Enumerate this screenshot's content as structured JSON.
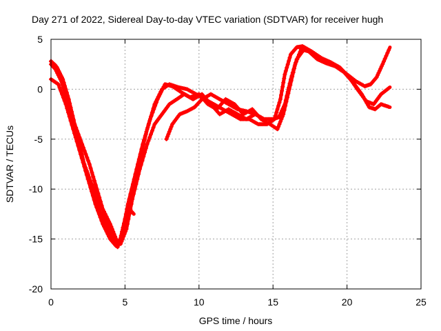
{
  "chart_data": {
    "type": "line",
    "title": "Day 271 of 2022, Sidereal Day-to-day VTEC variation (SDTVAR) for receiver hugh",
    "xlabel": "GPS time / hours",
    "ylabel": "SDTVAR / TECUs",
    "xlim": [
      0,
      25
    ],
    "ylim": [
      -20,
      5
    ],
    "xticks": [
      0,
      5,
      10,
      15,
      20,
      25
    ],
    "yticks": [
      -20,
      -15,
      -10,
      -5,
      0,
      5
    ],
    "grid": true,
    "marker": "+",
    "color": "#ff0000",
    "series": [
      {
        "name": "track-1",
        "x": [
          0,
          0.3,
          0.6,
          1.0,
          1.5,
          2.0,
          2.5,
          3.0,
          3.5,
          4.0,
          4.4,
          4.7,
          5.0,
          5.3,
          5.6
        ],
        "y": [
          2.8,
          2.4,
          1.5,
          -0.5,
          -3,
          -6,
          -9,
          -11.5,
          -13.5,
          -15,
          -15.7,
          -15.3,
          -13.5,
          -12,
          -12.5
        ]
      },
      {
        "name": "track-2",
        "x": [
          0,
          0.3,
          0.7,
          1.2,
          1.6,
          2.0,
          2.5,
          3.0,
          3.5,
          3.9,
          4.3,
          4.6,
          5.0,
          5.5,
          6.0,
          6.5,
          7.0,
          7.5,
          8.0,
          8.6,
          9.2,
          9.8,
          10.4,
          11.0,
          11.6,
          12.2,
          12.8,
          13.4,
          14.0,
          14.6,
          15.1,
          15.5,
          15.8,
          16.2,
          16.6,
          17.0,
          17.6,
          18.2,
          18.8,
          19.4,
          20.0,
          20.6,
          21.2,
          21.6,
          22.0,
          22.4,
          22.9
        ],
        "y": [
          2.5,
          2.0,
          0.8,
          -1.5,
          -4,
          -6.5,
          -9,
          -11,
          -13,
          -14.5,
          -15.5,
          -15.5,
          -13,
          -10,
          -7,
          -4,
          -1.5,
          0,
          0.5,
          0.2,
          0,
          -0.5,
          -1,
          -1.5,
          -2,
          -2.5,
          -3,
          -3,
          -3.5,
          -3.5,
          -3,
          -1,
          1.5,
          3.5,
          4.2,
          4.3,
          3.8,
          3.2,
          2.6,
          2.2,
          1.5,
          0.8,
          0.3,
          0.5,
          1.2,
          2.5,
          4.2
        ]
      },
      {
        "name": "track-3",
        "x": [
          0,
          0.4,
          0.8,
          1.2,
          1.6,
          2.1,
          2.6,
          3.1,
          3.6,
          4.1,
          4.5,
          4.8,
          5.2,
          5.7,
          6.2,
          6.7,
          7.2,
          7.7,
          8.2,
          8.8,
          9.4,
          10.0,
          10.6,
          11.2,
          11.8,
          12.4,
          13.0,
          13.6,
          14.2,
          14.8,
          15.3,
          15.7,
          16.1,
          16.5,
          16.9,
          17.4,
          18.0,
          18.6,
          19.2,
          19.8,
          20.4,
          21.0,
          21.5,
          21.9,
          22.3,
          22.9
        ],
        "y": [
          2.8,
          2.2,
          1,
          -1,
          -3.5,
          -5.5,
          -7.5,
          -10,
          -12.5,
          -14.8,
          -15.8,
          -14.5,
          -11.5,
          -8.5,
          -5.5,
          -3,
          -1,
          0.5,
          0.3,
          -0.3,
          -0.8,
          -0.5,
          -1.5,
          -2,
          -1,
          -1.5,
          -2.5,
          -2,
          -3,
          -3.5,
          -4,
          -2.5,
          0,
          2.5,
          4,
          3.8,
          3,
          2.6,
          2.3,
          1.7,
          0.7,
          -0.5,
          -1.8,
          -2,
          -1.5,
          -1.8
        ]
      },
      {
        "name": "track-4",
        "x": [
          0,
          0.5,
          1.0,
          1.5,
          2.0,
          2.5,
          3.0,
          3.5,
          4.0,
          4.4,
          4.7,
          5.1,
          5.5,
          6.0,
          6.5,
          7.0,
          7.5,
          8.0,
          8.5,
          9.0,
          9.6,
          10.2,
          10.8,
          11.4,
          12.0,
          12.6,
          13.2,
          13.8,
          14.4,
          15.0,
          15.4,
          15.8,
          16.2,
          16.6,
          17.1,
          17.7,
          18.3,
          18.9,
          19.5,
          20.1,
          20.7,
          21.3,
          21.8,
          22.3,
          22.9
        ],
        "y": [
          1,
          0.5,
          -1.5,
          -4,
          -6.5,
          -8.5,
          -10.5,
          -12,
          -13.5,
          -15,
          -15.5,
          -14,
          -11,
          -8,
          -5.5,
          -3.5,
          -2.5,
          -1.5,
          -1,
          -0.5,
          -1,
          -0.5,
          -1.5,
          -2.5,
          -2,
          -2.5,
          -3,
          -2.5,
          -3,
          -3,
          -2.8,
          -1.5,
          1,
          3,
          4,
          3.6,
          3.1,
          2.7,
          2.2,
          1.3,
          0,
          -1.2,
          -1.5,
          -0.5,
          0.2
        ]
      },
      {
        "name": "track-5",
        "x": [
          7.8,
          8.2,
          8.7,
          9.2,
          9.7,
          10.2,
          10.8,
          11.4,
          12.0,
          12.6,
          13.2,
          13.8,
          14.4
        ],
        "y": [
          -5,
          -3.5,
          -2.5,
          -2.2,
          -1.8,
          -1,
          -0.5,
          -1,
          -1.5,
          -2,
          -2.2,
          -2.5,
          -3
        ]
      }
    ]
  }
}
